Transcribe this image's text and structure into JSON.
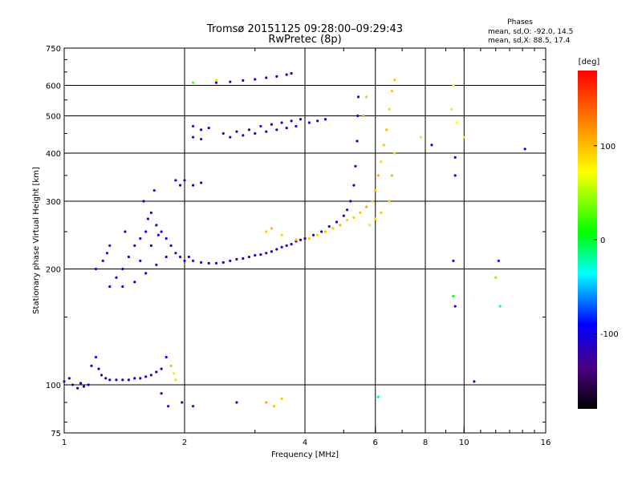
{
  "title_line1": "Tromsø 20151125 09:28:00–09:29:43",
  "title_line2": "RwPretec (8p)",
  "info": {
    "heading": "Phases",
    "line_o": "mean, sd,O: -92.0, 14.5",
    "line_x": "mean, sd,X: 88.5, 17.4"
  },
  "colorbar": {
    "label": "[deg]",
    "ticks": [
      {
        "value": 100,
        "label": "100"
      },
      {
        "value": 0,
        "label": "0"
      },
      {
        "value": -100,
        "label": "-100"
      }
    ],
    "range": [
      -180,
      180
    ]
  },
  "chart_data": {
    "type": "scatter",
    "xlabel": "Frequency [MHz]",
    "ylabel": "Stationary phase Virtual Height [km]",
    "xscale": "log",
    "yscale": "log",
    "xlim": [
      1,
      16
    ],
    "ylim": [
      75,
      750
    ],
    "xticks": [
      {
        "value": 1,
        "label": "1"
      },
      {
        "value": 2,
        "label": "2"
      },
      {
        "value": 4,
        "label": "4"
      },
      {
        "value": 6,
        "label": "6"
      },
      {
        "value": 8,
        "label": "8"
      },
      {
        "value": 10,
        "label": "10"
      },
      {
        "value": 16,
        "label": "16"
      }
    ],
    "yticks": [
      {
        "value": 75,
        "label": "75"
      },
      {
        "value": 100,
        "label": "100"
      },
      {
        "value": 200,
        "label": "200"
      },
      {
        "value": 300,
        "label": "300"
      },
      {
        "value": 400,
        "label": "400"
      },
      {
        "value": 500,
        "label": "500"
      },
      {
        "value": 600,
        "label": "600"
      },
      {
        "value": 750,
        "label": "750"
      }
    ],
    "grid_x": [
      2,
      4,
      6,
      8,
      10
    ],
    "grid_y": [
      100,
      200,
      300,
      400,
      500,
      600
    ],
    "points": [
      [
        1.0,
        102,
        -110
      ],
      [
        1.03,
        104,
        -100
      ],
      [
        1.05,
        100,
        -115
      ],
      [
        1.08,
        98,
        -105
      ],
      [
        1.1,
        101,
        -110
      ],
      [
        1.12,
        99,
        -100
      ],
      [
        1.15,
        100,
        -108
      ],
      [
        1.17,
        112,
        -110
      ],
      [
        1.2,
        118,
        -105
      ],
      [
        1.22,
        110,
        -100
      ],
      [
        1.24,
        106,
        -112
      ],
      [
        1.27,
        104,
        -110
      ],
      [
        1.3,
        103,
        -108
      ],
      [
        1.35,
        103,
        -110
      ],
      [
        1.4,
        103,
        -105
      ],
      [
        1.45,
        103,
        -110
      ],
      [
        1.5,
        104,
        -108
      ],
      [
        1.55,
        104,
        -110
      ],
      [
        1.6,
        105,
        -105
      ],
      [
        1.65,
        106,
        -108
      ],
      [
        1.7,
        108,
        -110
      ],
      [
        1.75,
        110,
        -100
      ],
      [
        1.8,
        118,
        -95
      ],
      [
        1.85,
        112,
        40
      ],
      [
        1.88,
        107,
        60
      ],
      [
        1.9,
        103,
        90
      ],
      [
        1.75,
        95,
        -110
      ],
      [
        1.82,
        88,
        -100
      ],
      [
        1.2,
        200,
        -110
      ],
      [
        1.25,
        210,
        -105
      ],
      [
        1.28,
        220,
        -110
      ],
      [
        1.3,
        180,
        -100
      ],
      [
        1.35,
        190,
        -108
      ],
      [
        1.4,
        200,
        -110
      ],
      [
        1.45,
        215,
        -105
      ],
      [
        1.5,
        230,
        -110
      ],
      [
        1.55,
        240,
        -100
      ],
      [
        1.6,
        250,
        -108
      ],
      [
        1.62,
        270,
        -110
      ],
      [
        1.65,
        280,
        -105
      ],
      [
        1.7,
        260,
        -110
      ],
      [
        1.75,
        250,
        -100
      ],
      [
        1.8,
        240,
        -108
      ],
      [
        1.85,
        230,
        -110
      ],
      [
        1.9,
        220,
        -105
      ],
      [
        1.95,
        215,
        -110
      ],
      [
        2.0,
        210,
        -100
      ],
      [
        1.4,
        180,
        -110
      ],
      [
        1.5,
        185,
        -105
      ],
      [
        1.6,
        195,
        -108
      ],
      [
        1.7,
        205,
        -110
      ],
      [
        1.8,
        215,
        -100
      ],
      [
        1.55,
        210,
        -110
      ],
      [
        1.65,
        230,
        -105
      ],
      [
        1.72,
        245,
        -110
      ],
      [
        1.3,
        230,
        -108
      ],
      [
        1.42,
        250,
        -110
      ],
      [
        1.58,
        300,
        -105
      ],
      [
        1.68,
        320,
        -110
      ],
      [
        1.9,
        340,
        -100
      ],
      [
        1.95,
        330,
        -110
      ],
      [
        2.05,
        215,
        -110
      ],
      [
        2.1,
        210,
        -108
      ],
      [
        2.2,
        208,
        -110
      ],
      [
        2.3,
        207,
        -105
      ],
      [
        2.4,
        207,
        -110
      ],
      [
        2.5,
        208,
        -100
      ],
      [
        2.6,
        210,
        -108
      ],
      [
        2.7,
        212,
        -110
      ],
      [
        2.8,
        213,
        -105
      ],
      [
        2.9,
        215,
        -110
      ],
      [
        3.0,
        217,
        -100
      ],
      [
        3.1,
        218,
        -108
      ],
      [
        3.2,
        220,
        -110
      ],
      [
        3.3,
        222,
        -105
      ],
      [
        3.4,
        225,
        -110
      ],
      [
        3.5,
        228,
        -100
      ],
      [
        3.6,
        230,
        -108
      ],
      [
        3.7,
        232,
        -110
      ],
      [
        3.8,
        236,
        -105
      ],
      [
        3.9,
        238,
        -110
      ],
      [
        4.0,
        240,
        -100
      ],
      [
        4.2,
        245,
        -108
      ],
      [
        4.4,
        250,
        -110
      ],
      [
        4.6,
        258,
        -105
      ],
      [
        4.8,
        265,
        -110
      ],
      [
        5.0,
        275,
        -100
      ],
      [
        5.1,
        285,
        -108
      ],
      [
        5.2,
        300,
        -110
      ],
      [
        5.3,
        330,
        -105
      ],
      [
        5.35,
        370,
        -110
      ],
      [
        5.4,
        430,
        -100
      ],
      [
        5.42,
        500,
        -110
      ],
      [
        5.44,
        560,
        -105
      ],
      [
        3.2,
        250,
        95
      ],
      [
        3.3,
        255,
        100
      ],
      [
        3.5,
        245,
        90
      ],
      [
        3.8,
        238,
        105
      ],
      [
        4.1,
        240,
        95
      ],
      [
        4.3,
        245,
        90
      ],
      [
        4.5,
        250,
        100
      ],
      [
        4.7,
        255,
        95
      ],
      [
        4.9,
        260,
        105
      ],
      [
        5.1,
        268,
        90
      ],
      [
        5.3,
        272,
        95
      ],
      [
        5.5,
        280,
        100
      ],
      [
        5.7,
        290,
        110
      ],
      [
        5.9,
        300,
        95
      ],
      [
        6.0,
        320,
        100
      ],
      [
        6.1,
        350,
        105
      ],
      [
        6.2,
        380,
        90
      ],
      [
        6.3,
        420,
        95
      ],
      [
        6.4,
        460,
        100
      ],
      [
        6.5,
        520,
        90
      ],
      [
        6.6,
        580,
        95
      ],
      [
        6.7,
        620,
        100
      ],
      [
        6.5,
        300,
        95
      ],
      [
        6.6,
        350,
        100
      ],
      [
        6.7,
        400,
        90
      ],
      [
        5.8,
        260,
        80
      ],
      [
        6.0,
        270,
        85
      ],
      [
        6.2,
        280,
        95
      ],
      [
        5.6,
        500,
        105
      ],
      [
        5.7,
        560,
        95
      ],
      [
        2.1,
        470,
        -110
      ],
      [
        2.2,
        460,
        -105
      ],
      [
        2.3,
        465,
        -100
      ],
      [
        2.5,
        450,
        -110
      ],
      [
        2.7,
        455,
        -108
      ],
      [
        2.9,
        460,
        -110
      ],
      [
        3.1,
        470,
        -105
      ],
      [
        3.3,
        475,
        -110
      ],
      [
        3.5,
        480,
        -100
      ],
      [
        3.7,
        485,
        -108
      ],
      [
        3.9,
        490,
        -110
      ],
      [
        4.1,
        480,
        -105
      ],
      [
        4.3,
        485,
        -110
      ],
      [
        4.5,
        490,
        -100
      ],
      [
        2.6,
        440,
        -110
      ],
      [
        2.8,
        445,
        -105
      ],
      [
        3.0,
        450,
        -110
      ],
      [
        3.2,
        455,
        -100
      ],
      [
        3.4,
        460,
        -108
      ],
      [
        3.6,
        465,
        -110
      ],
      [
        3.8,
        470,
        -105
      ],
      [
        2.1,
        440,
        -108
      ],
      [
        2.2,
        435,
        -110
      ],
      [
        2.4,
        610,
        -110
      ],
      [
        2.6,
        613,
        -105
      ],
      [
        2.8,
        618,
        -110
      ],
      [
        3.0,
        622,
        -100
      ],
      [
        3.2,
        628,
        -108
      ],
      [
        3.4,
        633,
        -110
      ],
      [
        3.6,
        640,
        -105
      ],
      [
        3.7,
        645,
        -110
      ],
      [
        2.1,
        610,
        30
      ],
      [
        2.4,
        620,
        80
      ],
      [
        2.0,
        340,
        -110
      ],
      [
        2.1,
        330,
        -105
      ],
      [
        2.2,
        335,
        -110
      ],
      [
        1.97,
        90,
        -110
      ],
      [
        2.1,
        88,
        -105
      ],
      [
        2.7,
        90,
        -100
      ],
      [
        3.2,
        90,
        105
      ],
      [
        3.35,
        88,
        95
      ],
      [
        3.5,
        92,
        100
      ],
      [
        9.4,
        600,
        70
      ],
      [
        9.5,
        390,
        -110
      ],
      [
        9.5,
        350,
        -105
      ],
      [
        9.4,
        210,
        -110
      ],
      [
        9.4,
        170,
        10
      ],
      [
        9.5,
        160,
        -105
      ],
      [
        12.2,
        210,
        -100
      ],
      [
        12.0,
        190,
        40
      ],
      [
        12.3,
        160,
        -20
      ],
      [
        14.2,
        410,
        -110
      ],
      [
        10.6,
        102,
        -110
      ],
      [
        9.3,
        520,
        80
      ],
      [
        9.6,
        480,
        70
      ],
      [
        10.0,
        440,
        60
      ],
      [
        6.1,
        93,
        -20
      ],
      [
        8.3,
        420,
        -110
      ],
      [
        7.8,
        440,
        85
      ]
    ]
  }
}
